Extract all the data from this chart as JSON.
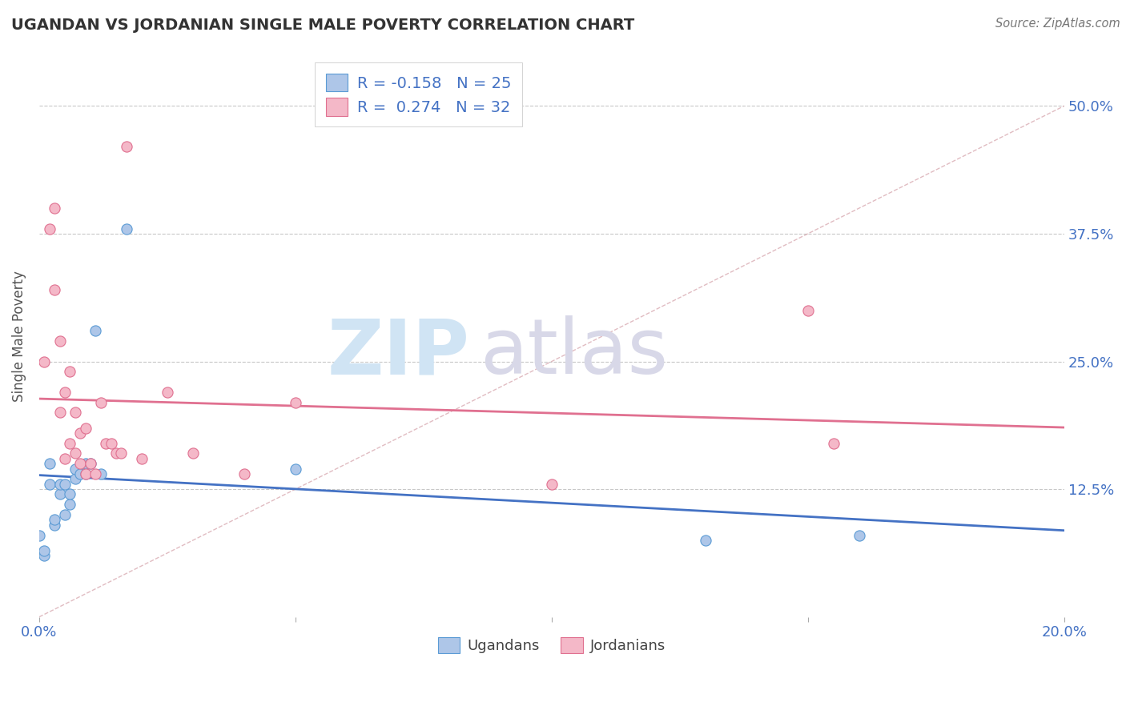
{
  "title": "UGANDAN VS JORDANIAN SINGLE MALE POVERTY CORRELATION CHART",
  "source": "Source: ZipAtlas.com",
  "ylabel": "Single Male Poverty",
  "xlim": [
    0.0,
    0.2
  ],
  "ylim": [
    0.0,
    0.55
  ],
  "ytick_values": [
    0.125,
    0.25,
    0.375,
    0.5
  ],
  "ugandan_fill": "#aec6e8",
  "ugandan_edge": "#5b9bd5",
  "jordanian_fill": "#f4b8c8",
  "jordanian_edge": "#e07090",
  "ugandan_line_color": "#4472c4",
  "jordanian_line_color": "#e07090",
  "ref_line_color": "#d4a0a8",
  "grid_color": "#c8c8c8",
  "text_blue": "#4472c4",
  "text_dark": "#404040",
  "watermark_zip": "#d0e4f4",
  "watermark_atlas": "#d8d8e8",
  "ugandans_x": [
    0.0,
    0.002,
    0.002,
    0.003,
    0.003,
    0.004,
    0.004,
    0.005,
    0.005,
    0.006,
    0.006,
    0.007,
    0.007,
    0.008,
    0.009,
    0.009,
    0.01,
    0.011,
    0.012,
    0.017,
    0.05,
    0.13,
    0.16,
    0.001,
    0.001
  ],
  "ugandans_y": [
    0.08,
    0.13,
    0.15,
    0.09,
    0.095,
    0.12,
    0.13,
    0.1,
    0.13,
    0.11,
    0.12,
    0.135,
    0.145,
    0.14,
    0.14,
    0.15,
    0.15,
    0.28,
    0.14,
    0.38,
    0.145,
    0.075,
    0.08,
    0.06,
    0.065
  ],
  "jordanians_x": [
    0.001,
    0.002,
    0.003,
    0.003,
    0.004,
    0.004,
    0.005,
    0.005,
    0.006,
    0.006,
    0.007,
    0.007,
    0.008,
    0.008,
    0.009,
    0.009,
    0.01,
    0.011,
    0.012,
    0.013,
    0.014,
    0.015,
    0.016,
    0.017,
    0.02,
    0.025,
    0.03,
    0.04,
    0.05,
    0.1,
    0.15,
    0.155
  ],
  "jordanians_y": [
    0.25,
    0.38,
    0.4,
    0.32,
    0.27,
    0.2,
    0.155,
    0.22,
    0.17,
    0.24,
    0.16,
    0.2,
    0.15,
    0.18,
    0.14,
    0.185,
    0.15,
    0.14,
    0.21,
    0.17,
    0.17,
    0.16,
    0.16,
    0.46,
    0.155,
    0.22,
    0.16,
    0.14,
    0.21,
    0.13,
    0.3,
    0.17
  ]
}
